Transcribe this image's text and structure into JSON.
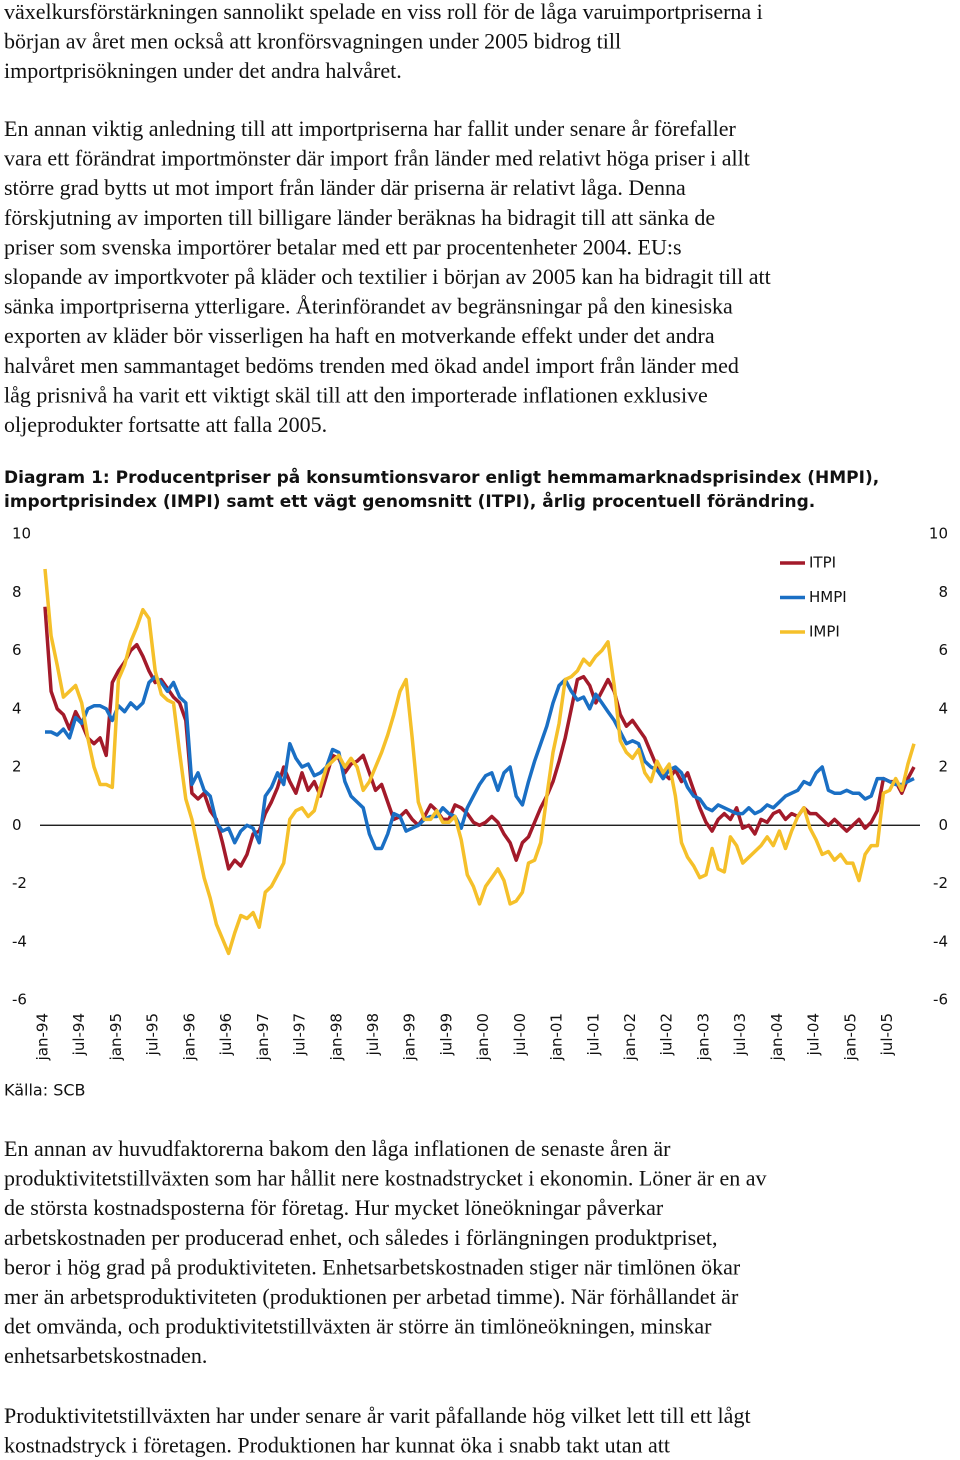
{
  "text_before": [
    [
      "växelkursförstärkningen sannolikt spelade en viss roll för de låga varuimportpriserna i",
      "början av året men också att kronförsvagningen under 2005 bidrog till",
      "importprisökningen under det andra halvåret."
    ],
    [
      "En annan viktig anledning till att importpriserna har fallit under senare år förefaller",
      "vara ett förändrat importmönster där import från länder med relativt höga priser i allt",
      "större grad bytts ut mot import från länder där priserna är relativt låga. Denna",
      "förskjutning av importen till billigare länder beräknas ha bidragit till att sänka de",
      "priser som svenska importörer betalar med ett par procentenheter 2004. EU:s",
      "slopande av importkvoter på kläder och textilier i början av 2005 kan ha bidragit till att",
      "sänka importpriserna ytterligare. Återinförandet av begränsningar på den kinesiska",
      "exporten av kläder bör visserligen ha haft en motverkande effekt under det andra",
      "halvåret men sammantaget bedöms trenden med ökad andel import från länder med",
      "låg prisnivå ha varit ett viktigt skäl till att den importerade inflationen exklusive",
      "oljeprodukter fortsatte att falla 2005."
    ]
  ],
  "chart_data": {
    "type": "line",
    "title": [
      "Diagram 1: Producentpriser på konsumtionsvaror enligt hemmamarknadsprisindex (HMPI),",
      "importprisindex (IMPI) samt ett vägt genomsnitt (ITPI), årlig procentuell förändring."
    ],
    "source": "Källa: SCB",
    "categories": [
      "jan-94",
      null,
      null,
      null,
      null,
      null,
      "jul-94",
      null,
      null,
      null,
      null,
      null,
      "jan-95",
      null,
      null,
      null,
      null,
      null,
      "jul-95",
      null,
      null,
      null,
      null,
      null,
      "jan-96",
      null,
      null,
      null,
      null,
      null,
      "jul-96",
      null,
      null,
      null,
      null,
      null,
      "jan-97",
      null,
      null,
      null,
      null,
      null,
      "jul-97",
      null,
      null,
      null,
      null,
      null,
      "jan-98",
      null,
      null,
      null,
      null,
      null,
      "jul-98",
      null,
      null,
      null,
      null,
      null,
      "jan-99",
      null,
      null,
      null,
      null,
      null,
      "jul-99",
      null,
      null,
      null,
      null,
      null,
      "jan-00",
      null,
      null,
      null,
      null,
      null,
      "jul-00",
      null,
      null,
      null,
      null,
      null,
      "jan-01",
      null,
      null,
      null,
      null,
      null,
      "jul-01",
      null,
      null,
      null,
      null,
      null,
      "jan-02",
      null,
      null,
      null,
      null,
      null,
      "jul-02",
      null,
      null,
      null,
      null,
      null,
      "jan-03",
      null,
      null,
      null,
      null,
      null,
      "jul-03",
      null,
      null,
      null,
      null,
      null,
      "jan-04",
      null,
      null,
      null,
      null,
      null,
      "jul-04",
      null,
      null,
      null,
      null,
      null,
      "jan-05",
      null,
      null,
      null,
      null,
      null,
      "jul-05",
      null,
      null,
      null,
      null
    ],
    "series": [
      {
        "name": "ITPI",
        "color": "#a31a2a",
        "values": [
          7.5,
          4.6,
          4.0,
          3.8,
          3.3,
          3.9,
          3.5,
          3.0,
          2.8,
          3.0,
          2.4,
          4.9,
          5.3,
          5.6,
          6.0,
          6.2,
          5.8,
          5.3,
          4.9,
          5.0,
          4.7,
          4.4,
          4.2,
          3.6,
          1.1,
          0.9,
          1.1,
          0.5,
          0.2,
          -0.6,
          -1.5,
          -1.2,
          -1.4,
          -1.0,
          -0.3,
          -0.2,
          0.4,
          0.8,
          1.3,
          2.0,
          1.5,
          1.1,
          1.8,
          1.2,
          1.5,
          1.0,
          1.7,
          2.4,
          2.3,
          1.8,
          2.1,
          2.2,
          2.4,
          1.8,
          1.2,
          1.4,
          0.8,
          0.2,
          0.3,
          0.5,
          0.2,
          0.0,
          0.3,
          0.7,
          0.5,
          0.2,
          0.2,
          0.7,
          0.6,
          0.4,
          0.1,
          0.0,
          0.1,
          0.3,
          0.1,
          -0.3,
          -0.6,
          -1.2,
          -0.6,
          -0.4,
          0.1,
          0.6,
          1.0,
          1.5,
          2.2,
          3.0,
          4.0,
          5.0,
          5.1,
          4.8,
          4.2,
          4.6,
          5.0,
          4.6,
          3.8,
          3.4,
          3.6,
          3.3,
          3.0,
          2.5,
          2.0,
          1.8,
          1.6,
          1.9,
          1.5,
          1.8,
          1.2,
          0.6,
          0.1,
          -0.2,
          0.2,
          0.4,
          0.2,
          0.6,
          -0.1,
          0.0,
          -0.3,
          0.2,
          0.1,
          0.4,
          0.5,
          0.2,
          0.4,
          0.3,
          0.6,
          0.4,
          0.4,
          0.2,
          0.0,
          0.2,
          0.0,
          -0.2,
          0.0,
          0.2,
          -0.1,
          0.1,
          0.5,
          1.6,
          1.5,
          1.5,
          1.1,
          1.6,
          2.0
        ]
      },
      {
        "name": "HMPI",
        "color": "#1a6fc4",
        "values": [
          3.2,
          3.2,
          3.1,
          3.3,
          3.0,
          3.7,
          3.5,
          4.0,
          4.1,
          4.1,
          4.0,
          3.6,
          4.1,
          3.9,
          4.2,
          4.0,
          4.2,
          4.9,
          5.1,
          4.9,
          4.6,
          4.9,
          4.4,
          4.2,
          1.4,
          1.8,
          1.2,
          1.0,
          0.1,
          -0.2,
          -0.1,
          -0.6,
          -0.2,
          0.0,
          -0.1,
          -0.6,
          1.0,
          1.3,
          1.8,
          1.4,
          2.8,
          2.3,
          2.0,
          2.1,
          1.7,
          1.8,
          2.0,
          2.6,
          2.5,
          1.5,
          1.0,
          0.8,
          0.6,
          -0.3,
          -0.8,
          -0.8,
          -0.3,
          0.4,
          0.3,
          -0.2,
          -0.1,
          0.0,
          0.2,
          0.3,
          0.3,
          0.6,
          0.4,
          0.3,
          -0.1,
          0.6,
          1.0,
          1.4,
          1.7,
          1.8,
          1.2,
          1.8,
          2.0,
          1.0,
          0.7,
          1.5,
          2.2,
          2.8,
          3.4,
          4.2,
          4.8,
          5.0,
          4.6,
          4.3,
          4.4,
          4.0,
          4.5,
          4.2,
          3.9,
          3.6,
          3.2,
          2.8,
          2.9,
          2.8,
          2.2,
          2.0,
          1.9,
          1.6,
          1.9,
          2.0,
          1.8,
          1.3,
          1.0,
          0.9,
          0.6,
          0.5,
          0.7,
          0.6,
          0.5,
          0.4,
          0.4,
          0.6,
          0.4,
          0.5,
          0.7,
          0.6,
          0.8,
          1.0,
          1.1,
          1.2,
          1.5,
          1.4,
          1.8,
          2.0,
          1.2,
          1.1,
          1.1,
          1.2,
          1.1,
          1.1,
          0.9,
          1.0,
          1.6,
          1.6,
          1.5,
          1.4,
          1.4,
          1.5,
          1.6
        ]
      },
      {
        "name": "IMPI",
        "color": "#f5c02a",
        "values": [
          8.8,
          6.5,
          5.5,
          4.4,
          4.6,
          4.8,
          4.2,
          3.0,
          2.0,
          1.4,
          1.4,
          1.3,
          5.0,
          5.5,
          6.3,
          6.8,
          7.4,
          7.1,
          5.3,
          4.5,
          4.3,
          4.2,
          2.5,
          0.9,
          0.2,
          -0.8,
          -1.8,
          -2.5,
          -3.4,
          -3.9,
          -4.4,
          -3.7,
          -3.1,
          -3.2,
          -3.0,
          -3.5,
          -2.3,
          -2.1,
          -1.7,
          -1.3,
          0.2,
          0.5,
          0.6,
          0.3,
          0.5,
          1.3,
          2.0,
          2.2,
          2.4,
          2.0,
          2.3,
          2.0,
          1.2,
          1.5,
          2.0,
          2.5,
          3.1,
          3.8,
          4.6,
          5.0,
          3.0,
          0.8,
          0.2,
          0.2,
          0.5,
          0.1,
          0.1,
          0.3,
          -0.5,
          -1.7,
          -2.1,
          -2.7,
          -2.1,
          -1.8,
          -1.5,
          -1.9,
          -2.7,
          -2.6,
          -2.3,
          -1.3,
          -1.2,
          -0.6,
          1.0,
          2.5,
          3.5,
          5.0,
          5.1,
          5.3,
          5.7,
          5.5,
          5.8,
          6.0,
          6.3,
          4.8,
          2.9,
          2.5,
          2.3,
          2.6,
          1.8,
          1.5,
          2.2,
          1.8,
          2.1,
          1.0,
          -0.6,
          -1.1,
          -1.4,
          -1.8,
          -1.7,
          -0.8,
          -1.5,
          -1.6,
          -0.4,
          -0.7,
          -1.3,
          -1.1,
          -0.9,
          -0.7,
          -0.4,
          -0.7,
          -0.2,
          -0.8,
          -0.2,
          0.3,
          0.6,
          -0.1,
          -0.5,
          -1.0,
          -0.9,
          -1.2,
          -1.0,
          -1.3,
          -1.3,
          -1.9,
          -1.0,
          -0.7,
          -0.7,
          1.1,
          1.2,
          1.6,
          1.2,
          2.1,
          2.8
        ]
      }
    ],
    "ylim": [
      -6,
      10
    ],
    "yticks": [
      10,
      8,
      6,
      4,
      2,
      0,
      -2,
      -4,
      -6
    ],
    "y2lim": [
      -6,
      10
    ],
    "y2ticks": [
      10,
      8,
      6,
      4,
      2,
      0,
      -2,
      -4,
      -6
    ],
    "legend": "upper right"
  },
  "text_after": [
    [
      "En annan av huvudfaktorerna bakom den låga inflationen de senaste åren är",
      "produktivitetstillväxten som har hållit nere kostnadstrycket i ekonomin. Löner är en av",
      "de största kostnadsposterna för företag. Hur mycket löneökningar påverkar",
      "arbetskostnaden per producerad enhet, och således i förlängningen produktpriset,",
      "beror i hög grad på produktiviteten. Enhetsarbetskostnaden stiger när timlönen ökar",
      "mer än arbetsproduktiviteten (produktionen per arbetad timme). När förhållandet är",
      "det omvända, och produktivitetstillväxten är större än timlöneökningen, minskar",
      "enhetsarbetskostnaden."
    ],
    [
      "Produktivitetstillväxten har under senare år varit påfallande hög vilket lett till ett lågt",
      "kostnadstryck i företagen. Produktionen har kunnat öka i snabb takt utan att"
    ]
  ]
}
